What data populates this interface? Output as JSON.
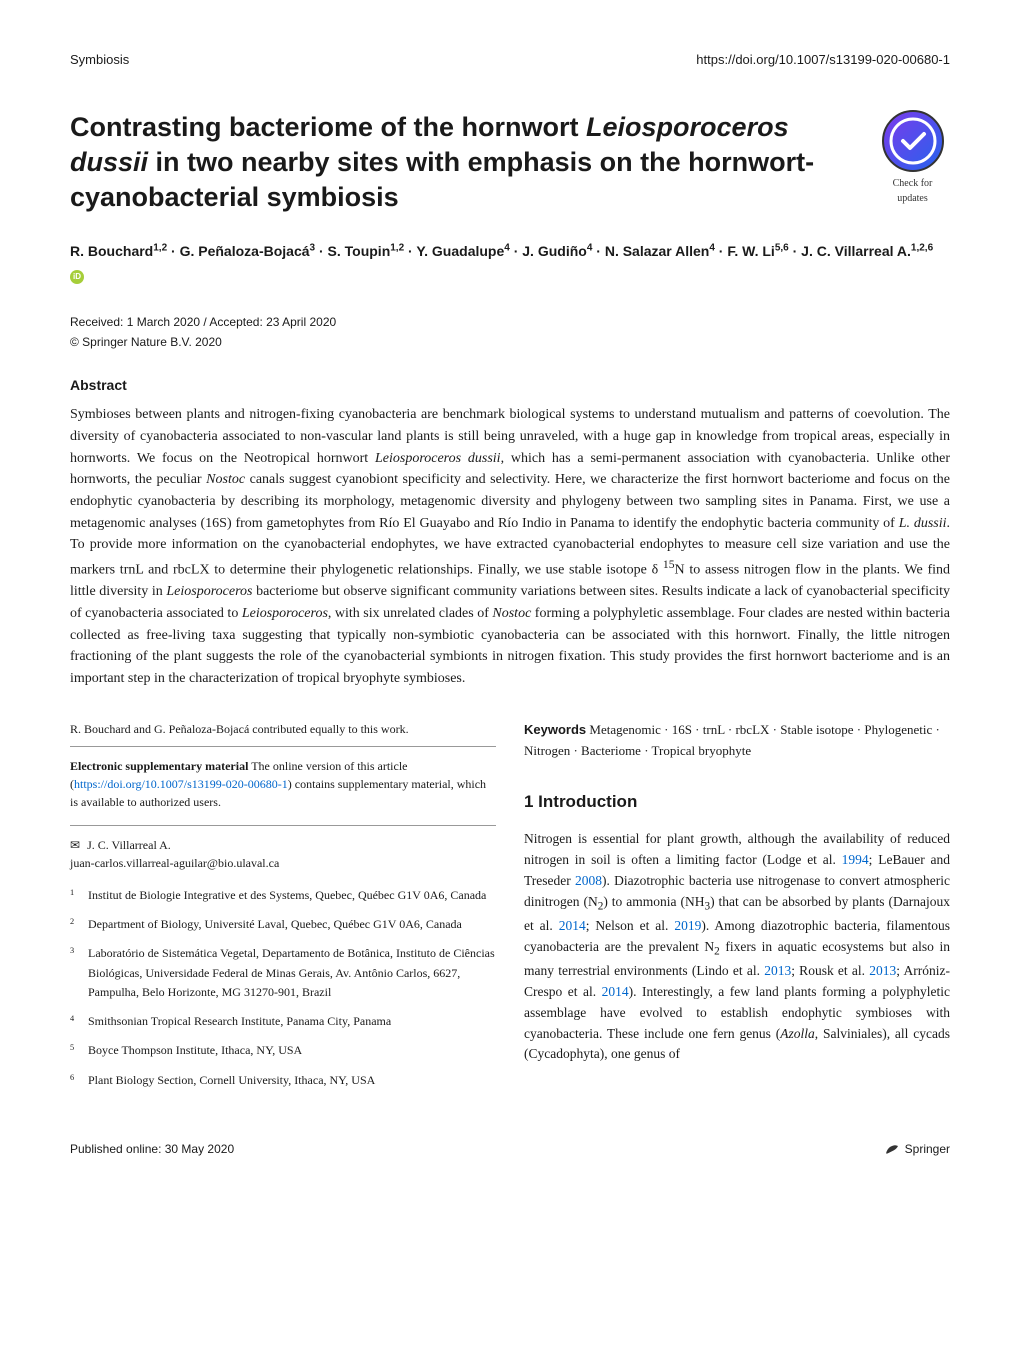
{
  "header": {
    "journal": "Symbiosis",
    "doi": "https://doi.org/10.1007/s13199-020-00680-1"
  },
  "check_updates": {
    "line1": "Check for",
    "line2": "updates"
  },
  "title_html": "Contrasting bacteriome of the hornwort <span class='species'>Leiosporoceros dussii</span> in two nearby sites with emphasis on the hornwort-cyanobacterial symbiosis",
  "authors_html": "R. Bouchard<sup>1,2</sup> · G. Peñaloza-Bojacá<sup>3</sup> · S. Toupin<sup>1,2</sup> · Y. Guadalupe<sup>4</sup> · J. Gudiño<sup>4</sup> · N. Salazar Allen<sup>4</sup> · F. W. Li<sup>5,6</sup> · J. C. Villarreal A.<sup>1,2,6</sup>",
  "dates": "Received: 1 March 2020 / Accepted: 23 April 2020",
  "copyright": "© Springer Nature B.V. 2020",
  "abstract_heading": "Abstract",
  "abstract_html": "Symbioses between plants and nitrogen-fixing cyanobacteria are benchmark biological systems to understand mutualism and patterns of coevolution. The diversity of cyanobacteria associated to non-vascular land plants is still being unraveled, with a huge gap in knowledge from tropical areas, especially in hornworts. We focus on the Neotropical hornwort <span class='species'>Leiosporoceros dussii</span>, which has a semi-permanent association with cyanobacteria. Unlike other hornworts, the peculiar <span class='species'>Nostoc</span> canals suggest cyanobiont specificity and selectivity. Here, we characterize the first hornwort bacteriome and focus on the endophytic cyanobacteria by describing its morphology, metagenomic diversity and phylogeny between two sampling sites in Panama. First, we use a metagenomic analyses (16S) from gametophytes from Río El Guayabo and Río Indio in Panama to identify the endophytic bacteria community of <span class='species'>L. dussii</span>. To provide more information on the cyanobacterial endophytes, we have extracted cyanobacterial endophytes to measure cell size variation and use the markers trnL and rbcLX to determine their phylogenetic relationships. Finally, we use stable isotope δ <sup>15</sup>N to assess nitrogen flow in the plants. We find little diversity in <span class='species'>Leiosporoceros</span> bacteriome but observe significant community variations between sites. Results indicate a lack of cyanobacterial specificity of cyanobacteria associated to <span class='species'>Leiosporoceros</span>, with six unrelated clades of <span class='species'>Nostoc</span> forming a polyphyletic assemblage. Four clades are nested within bacteria collected as free-living taxa suggesting that typically non-symbiotic cyanobacteria can be associated with this hornwort. Finally, the little nitrogen fractioning of the plant suggests the role of the cyanobacterial symbionts in nitrogen fixation. This study provides the first hornwort bacteriome and is an important step in the characterization of tropical bryophyte symbioses.",
  "keywords_head": "Keywords",
  "keywords_text": "Metagenomic · 16S · trnL · rbcLX · Stable isotope · Phylogenetic · Nitrogen · Bacteriome · Tropical bryophyte",
  "intro_heading": "1 Introduction",
  "intro_html": "Nitrogen is essential for plant growth, although the availability of reduced nitrogen in soil is often a limiting factor (Lodge et al. <span class='ref'>1994</span>; LeBauer and Treseder <span class='ref'>2008</span>). Diazotrophic bacteria use nitrogenase to convert atmospheric dinitrogen (N<sub>2</sub>) to ammonia (NH<sub>3</sub>) that can be absorbed by plants (Darnajoux et al. <span class='ref'>2014</span>; Nelson et al. <span class='ref'>2019</span>). Among diazotrophic bacteria, filamentous cyanobacteria are the prevalent N<sub>2</sub> fixers in aquatic ecosystems but also in many terrestrial environments (Lindo et al. <span class='ref'>2013</span>; Rousk et al. <span class='ref'>2013</span>; Arróniz-Crespo et al. <span class='ref'>2014</span>). Interestingly, a few land plants forming a polyphyletic assemblage have evolved to establish endophytic symbioses with cyanobacteria. These include one fern genus (<span class='species'>Azolla</span>, Salviniales), all cycads (Cycadophyta), one genus of",
  "contrib_note": "R. Bouchard and G. Peñaloza-Bojacá contributed equally to this work.",
  "supp": {
    "head": "Electronic supplementary material",
    "text": "The online version of this article (",
    "link": "https://doi.org/10.1007/s13199-020-00680-1",
    "text2": ") contains supplementary material, which is available to authorized users."
  },
  "corr": {
    "name": "J. C. Villarreal A.",
    "email": "juan-carlos.villarreal-aguilar@bio.ulaval.ca"
  },
  "affils": [
    {
      "n": "1",
      "t": "Institut de Biologie Integrative et des Systems, Quebec, Québec G1V 0A6, Canada"
    },
    {
      "n": "2",
      "t": "Department of Biology, Université Laval, Quebec, Québec G1V 0A6, Canada"
    },
    {
      "n": "3",
      "t": "Laboratório de Sistemática Vegetal, Departamento de Botânica, Instituto de Ciências Biológicas, Universidade Federal de Minas Gerais, Av. Antônio Carlos, 6627, Pampulha, Belo Horizonte, MG 31270-901, Brazil"
    },
    {
      "n": "4",
      "t": "Smithsonian Tropical Research Institute, Panama City, Panama"
    },
    {
      "n": "5",
      "t": "Boyce Thompson Institute, Ithaca, NY, USA"
    },
    {
      "n": "6",
      "t": "Plant Biology Section, Cornell University, Ithaca, NY, USA"
    }
  ],
  "footer": {
    "published": "Published online: 30 May 2020",
    "publisher": "Springer"
  },
  "colors": {
    "link": "#0066cc",
    "orcid": "#a6ce39",
    "text": "#1a1a1a",
    "rule": "#999999"
  }
}
